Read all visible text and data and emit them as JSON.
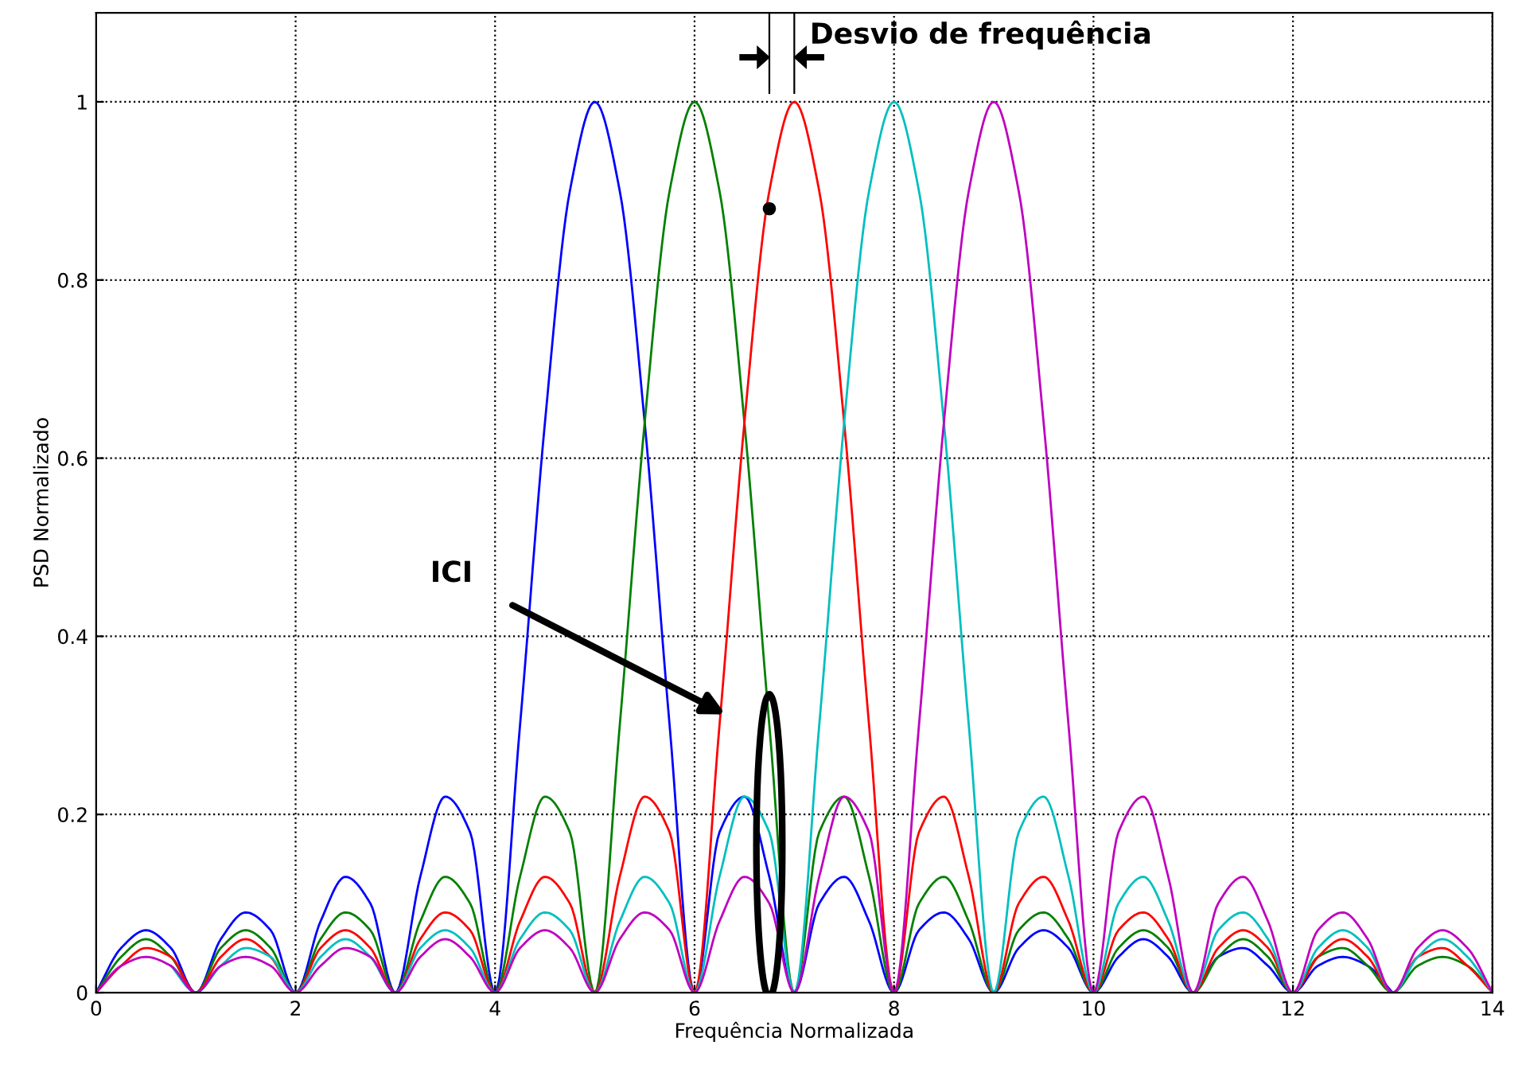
{
  "chart_data": {
    "type": "line",
    "xlabel": "Frequência Normalizada",
    "ylabel": "PSD Normalizado",
    "annotations": [
      "Desvio de frequência",
      "ICI"
    ],
    "x": [
      0,
      0.25,
      0.5,
      0.75,
      1,
      1.25,
      1.5,
      1.75,
      2,
      2.25,
      2.5,
      2.75,
      3,
      3.25,
      3.5,
      3.75,
      4,
      4.25,
      4.5,
      4.75,
      5,
      5.25,
      5.5,
      5.75,
      6,
      6.25,
      6.5,
      6.75,
      7,
      7.25,
      7.5,
      7.75,
      8,
      8.25,
      8.5,
      8.75,
      9,
      9.25,
      9.5,
      9.75,
      10,
      10.25,
      10.5,
      10.75,
      11,
      11.25,
      11.5,
      11.75,
      12,
      12.25,
      12.5,
      12.75,
      13,
      13.25,
      13.5,
      13.75,
      14
    ],
    "series": [
      {
        "color": "#0000ff",
        "values": [
          0,
          0.05,
          0.07,
          0.05,
          0,
          0.06,
          0.09,
          0.07,
          0,
          0.08,
          0.13,
          0.1,
          0,
          0.13,
          0.22,
          0.18,
          0,
          0.3,
          0.64,
          0.9,
          1,
          0.9,
          0.64,
          0.3,
          0,
          0.18,
          0.22,
          0.13,
          0,
          0.1,
          0.13,
          0.08,
          0,
          0.07,
          0.09,
          0.06,
          0,
          0.05,
          0.07,
          0.05,
          0,
          0.04,
          0.06,
          0.04,
          0,
          0.04,
          0.05,
          0.03,
          0,
          0.03,
          0.04,
          0.03,
          0,
          null,
          null,
          null,
          null
        ]
      },
      {
        "color": "#008000",
        "values": [
          0,
          0.04,
          0.06,
          0.04,
          0,
          0.05,
          0.07,
          0.05,
          0,
          0.06,
          0.09,
          0.07,
          0,
          0.08,
          0.13,
          0.1,
          0,
          0.13,
          0.22,
          0.18,
          0,
          0.3,
          0.64,
          0.9,
          1,
          0.9,
          0.64,
          0.3,
          0,
          0.18,
          0.22,
          0.13,
          0,
          0.1,
          0.13,
          0.08,
          0,
          0.07,
          0.09,
          0.06,
          0,
          0.05,
          0.07,
          0.05,
          0,
          0.04,
          0.06,
          0.04,
          0,
          0.04,
          0.05,
          0.03,
          0,
          0.03,
          0.04,
          0.03,
          0
        ]
      },
      {
        "color": "#ff0000",
        "values": [
          0,
          0.03,
          0.05,
          0.04,
          0,
          0.04,
          0.06,
          0.04,
          0,
          0.05,
          0.07,
          0.05,
          0,
          0.06,
          0.09,
          0.07,
          0,
          0.08,
          0.13,
          0.1,
          0,
          0.13,
          0.22,
          0.18,
          0,
          0.3,
          0.64,
          0.9,
          1,
          0.9,
          0.64,
          0.3,
          0,
          0.18,
          0.22,
          0.13,
          0,
          0.1,
          0.13,
          0.08,
          0,
          0.07,
          0.09,
          0.06,
          0,
          0.05,
          0.07,
          0.05,
          0,
          0.04,
          0.06,
          0.04,
          0,
          0.04,
          0.05,
          0.03,
          0
        ]
      },
      {
        "color": "#00bfbf",
        "values": [
          null,
          null,
          null,
          0.03,
          0,
          0.03,
          0.05,
          0.04,
          0,
          0.04,
          0.06,
          0.04,
          0,
          0.05,
          0.07,
          0.05,
          0,
          0.06,
          0.09,
          0.07,
          0,
          0.08,
          0.13,
          0.1,
          0,
          0.13,
          0.22,
          0.18,
          0,
          0.3,
          0.64,
          0.9,
          1,
          0.9,
          0.64,
          0.3,
          0,
          0.18,
          0.22,
          0.13,
          0,
          0.1,
          0.13,
          0.08,
          0,
          0.07,
          0.09,
          0.06,
          0,
          0.05,
          0.07,
          0.05,
          0,
          0.04,
          0.06,
          0.04,
          0
        ]
      },
      {
        "color": "#bf00bf",
        "values": [
          0,
          0.03,
          0.04,
          0.03,
          0,
          0.03,
          0.04,
          0.03,
          0,
          0.03,
          0.05,
          0.04,
          0,
          0.04,
          0.06,
          0.04,
          0,
          0.05,
          0.07,
          0.05,
          0,
          0.06,
          0.09,
          0.07,
          0,
          0.08,
          0.13,
          0.1,
          0,
          0.13,
          0.22,
          0.18,
          0,
          0.3,
          0.64,
          0.9,
          1,
          0.9,
          0.64,
          0.3,
          0,
          0.18,
          0.22,
          0.13,
          0,
          0.1,
          0.13,
          0.08,
          0,
          0.07,
          0.09,
          0.06,
          0,
          0.05,
          0.07,
          0.05,
          0
        ]
      },
      {
        "type": "scatter",
        "color": "#000000",
        "marker": "circle",
        "x": [
          6.75
        ],
        "values": [
          0.88
        ]
      }
    ],
    "xlim": [
      0,
      14
    ],
    "ylim": [
      0,
      1.1
    ],
    "xticks": [
      0,
      2,
      4,
      6,
      8,
      10,
      12,
      14
    ],
    "yticks": [
      0,
      0.2,
      0.4,
      0.6,
      0.8,
      1
    ],
    "grid": true,
    "line_style": "solid",
    "marker": "none"
  }
}
